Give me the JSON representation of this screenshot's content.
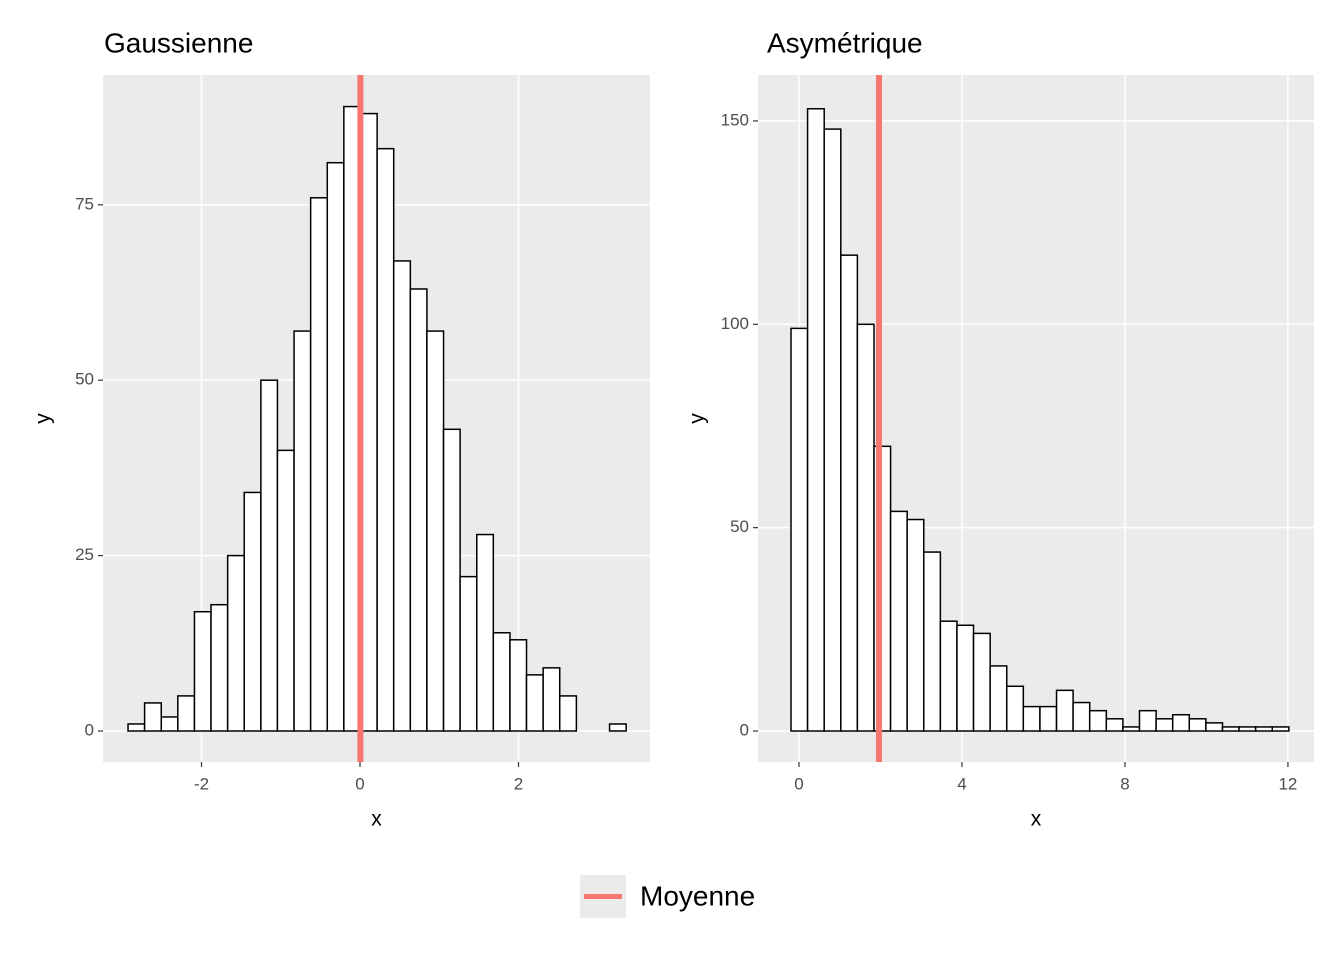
{
  "chart_data": [
    {
      "type": "histogram",
      "title": "Gaussienne",
      "xlabel": "x",
      "ylabel": "y",
      "bins": [
        -2.927,
        -2.718,
        -2.508,
        -2.299,
        -2.089,
        -1.88,
        -1.67,
        -1.461,
        -1.251,
        -1.042,
        -0.832,
        -0.623,
        -0.413,
        -0.204,
        0.006,
        0.216,
        0.425,
        0.635,
        0.844,
        1.054,
        1.263,
        1.473,
        1.682,
        1.892,
        2.101,
        2.311,
        2.52,
        2.73,
        2.939,
        3.149,
        3.358
      ],
      "values": [
        1,
        4,
        2,
        5,
        17,
        18,
        25,
        34,
        50,
        40,
        57,
        76,
        81,
        89,
        88,
        83,
        67,
        63,
        57,
        43,
        22,
        28,
        14,
        13,
        8,
        9,
        5,
        0,
        0,
        1
      ],
      "vline": 0.005,
      "xlim": [
        -3.243,
        3.659
      ],
      "ylim": [
        -4.42,
        93.5
      ],
      "xticks": [
        -2,
        0,
        2
      ],
      "yticks": [
        0,
        25,
        50,
        75
      ],
      "grid": true
    },
    {
      "type": "histogram",
      "title": "Asymétrique",
      "xlabel": "x",
      "ylabel": "y",
      "bins": [
        -0.196,
        0.211,
        0.619,
        1.026,
        1.433,
        1.841,
        2.248,
        2.655,
        3.062,
        3.47,
        3.877,
        4.284,
        4.692,
        5.099,
        5.506,
        5.914,
        6.321,
        6.728,
        7.135,
        7.543,
        7.95,
        8.357,
        8.765,
        9.172,
        9.579,
        9.987,
        10.394,
        10.801,
        11.208,
        11.616,
        12.023
      ],
      "values": [
        99,
        153,
        148,
        117,
        100,
        70,
        54,
        52,
        44,
        27,
        26,
        24,
        16,
        11,
        6,
        6,
        10,
        7,
        5,
        3,
        1,
        5,
        3,
        4,
        3,
        2,
        1,
        1,
        1,
        1
      ],
      "vline": 1.963,
      "xlim": [
        -1.006,
        12.64
      ],
      "ylim": [
        -7.62,
        161.3
      ],
      "xticks": [
        0,
        4,
        8,
        12
      ],
      "yticks": [
        0,
        50,
        100,
        150
      ],
      "grid": true
    }
  ],
  "legend": {
    "label": "Moyenne",
    "color": "#f8766d",
    "position": "bottom"
  }
}
